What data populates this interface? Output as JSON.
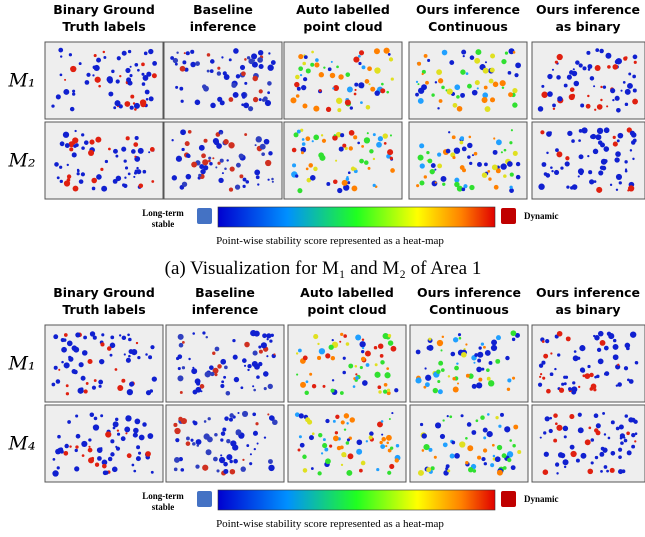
{
  "panels": [
    {
      "column_headers": [
        [
          "Binary Ground",
          "Truth labels"
        ],
        [
          "Baseline",
          "inference"
        ],
        [
          "Auto labelled",
          "point cloud"
        ],
        [
          "Ours inference",
          "Continuous"
        ],
        [
          "Ours inference",
          "as binary"
        ]
      ],
      "rows": [
        "M₁",
        "M₂"
      ],
      "legend": {
        "left": [
          "Long-term",
          "stable"
        ],
        "right": "Dynamic",
        "caption": "Point-wise stability score represented as a heat-map"
      },
      "caption": "(a) Visualization for M₁ and M₂ of Area 1"
    },
    {
      "column_headers": [
        [
          "Binary Ground",
          "Truth labels"
        ],
        [
          "Baseline",
          "inference"
        ],
        [
          "Auto labelled",
          "point cloud"
        ],
        [
          "Ours inference",
          "Continuous"
        ],
        [
          "Ours inference",
          "as binary"
        ]
      ],
      "rows": [
        "M₁",
        "M₄"
      ],
      "legend": {
        "left": [
          "Long-term",
          "stable"
        ],
        "right": "Dynamic",
        "caption": "Point-wise stability score represented as a heat-map"
      }
    }
  ]
}
